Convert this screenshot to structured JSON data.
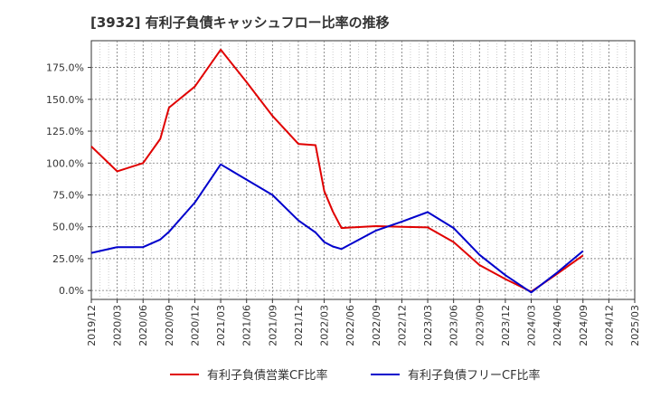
{
  "chart_data": {
    "type": "line",
    "title": "[3932]  有利子負債キャッシュフロー比率の推移",
    "x": [
      "2019/12",
      "2020/03",
      "2020/06",
      "2020/09",
      "2020/12",
      "2021/03",
      "2021/06",
      "2021/09",
      "2021/12",
      "2022/03",
      "2022/06",
      "2022/09",
      "2022/12",
      "2023/03",
      "2023/06",
      "2023/09",
      "2023/12",
      "2024/03",
      "2024/06",
      "2024/09",
      "2024/12",
      "2025/03"
    ],
    "yticks": [
      "0.0%",
      "25.0%",
      "50.0%",
      "75.0%",
      "100.0%",
      "125.0%",
      "150.0%",
      "175.0%"
    ],
    "ylim": [
      -7,
      196
    ],
    "grid": true,
    "legend_position": "bottom",
    "series": [
      {
        "name": "有利子負債営業CF比率",
        "color": "#e00000",
        "points": [
          [
            "2019/12",
            113
          ],
          [
            "2020/03",
            93.5
          ],
          [
            "2020/06",
            100
          ],
          [
            "2020/08",
            119
          ],
          [
            "2020/09",
            143.5
          ],
          [
            "2020/12",
            160
          ],
          [
            "2021/03",
            189
          ],
          [
            "2021/06",
            163.5
          ],
          [
            "2021/09",
            137
          ],
          [
            "2021/12",
            115
          ],
          [
            "2022/02",
            114
          ],
          [
            "2022/03",
            78
          ],
          [
            "2022/04",
            62
          ],
          [
            "2022/05",
            49
          ],
          [
            "2022/09",
            50.5
          ],
          [
            "2022/12",
            50
          ],
          [
            "2023/03",
            49.5
          ],
          [
            "2023/06",
            38
          ],
          [
            "2023/09",
            20
          ],
          [
            "2023/12",
            9
          ],
          [
            "2024/03",
            -1
          ],
          [
            "2024/06",
            13
          ],
          [
            "2024/09",
            27.5
          ]
        ]
      },
      {
        "name": "有利子負債フリーCF比率",
        "color": "#0000cc",
        "points": [
          [
            "2019/12",
            29.5
          ],
          [
            "2020/03",
            34
          ],
          [
            "2020/06",
            34
          ],
          [
            "2020/08",
            40
          ],
          [
            "2020/09",
            46
          ],
          [
            "2020/12",
            69
          ],
          [
            "2021/03",
            99
          ],
          [
            "2021/06",
            87
          ],
          [
            "2021/09",
            75
          ],
          [
            "2021/12",
            55
          ],
          [
            "2022/02",
            45.5
          ],
          [
            "2022/03",
            38
          ],
          [
            "2022/04",
            34.5
          ],
          [
            "2022/05",
            32.5
          ],
          [
            "2022/09",
            47
          ],
          [
            "2022/12",
            54
          ],
          [
            "2023/03",
            61.5
          ],
          [
            "2023/06",
            49
          ],
          [
            "2023/09",
            28
          ],
          [
            "2023/12",
            12
          ],
          [
            "2024/03",
            -1.5
          ],
          [
            "2024/06",
            14
          ],
          [
            "2024/09",
            31
          ]
        ]
      }
    ]
  }
}
